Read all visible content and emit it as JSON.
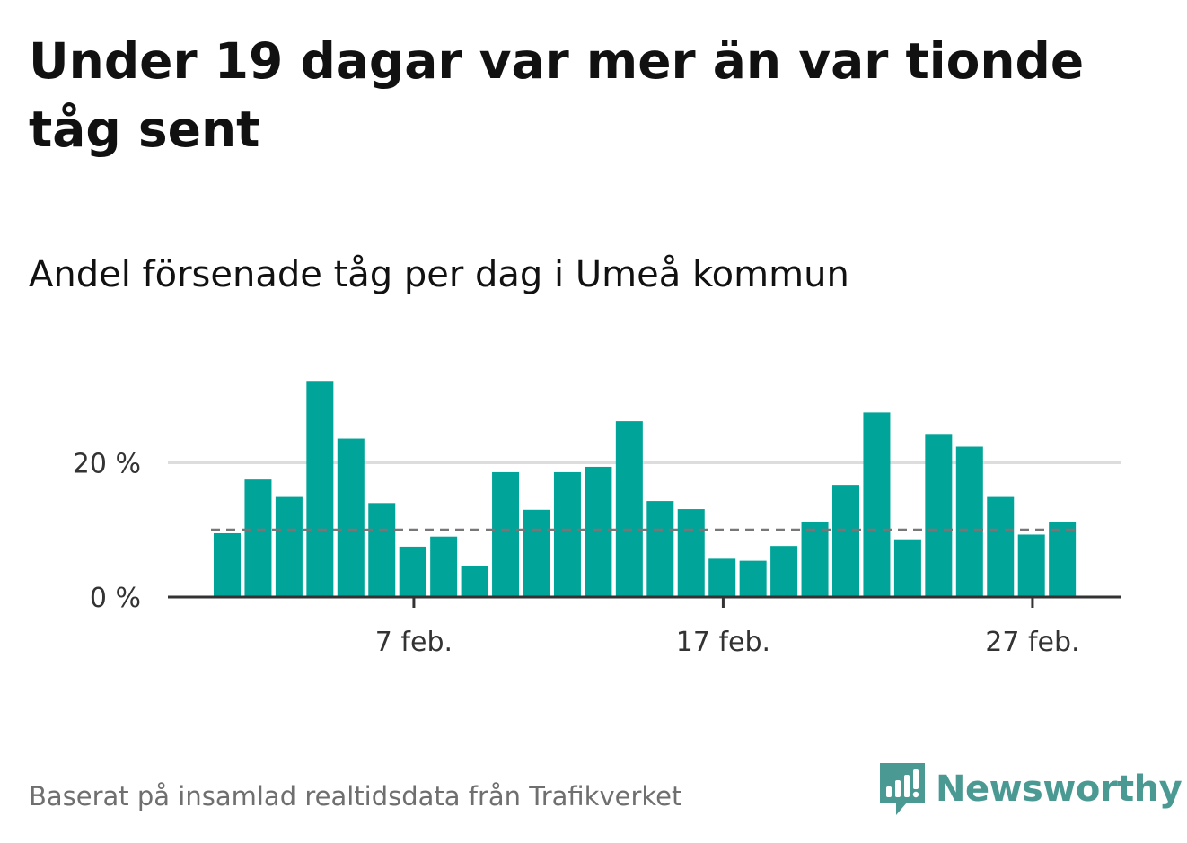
{
  "title": "Under 19 dagar var mer än var tionde tåg sent",
  "subtitle": "Andel försenade tåg per dag i Umeå kommun",
  "source": "Baserat på insamlad realtidsdata från Trafikverket",
  "logo": {
    "text": "Newsworthy",
    "icon": "bar-chart-speech-bubble-icon",
    "color": "#4a9a93"
  },
  "colors": {
    "bar": "#00a499",
    "reference": "#777777",
    "grid": "#dddddd",
    "axis": "#333333"
  },
  "chart_data": {
    "type": "bar",
    "title": "Andel försenade tåg per dag i Umeå kommun",
    "x": [
      "2/1",
      "2/2",
      "2/3",
      "2/4",
      "2/5",
      "2/6",
      "2/7",
      "2/8",
      "2/9",
      "2/10",
      "2/11",
      "2/12",
      "2/13",
      "2/14",
      "2/15",
      "2/16",
      "2/17",
      "2/18",
      "2/19",
      "2/20",
      "2/21",
      "2/22",
      "2/23",
      "2/24",
      "2/25",
      "2/26",
      "2/27",
      "2/28"
    ],
    "values": [
      9.5,
      17.5,
      14.9,
      32.2,
      23.6,
      14.0,
      7.5,
      9.0,
      4.6,
      18.6,
      13.0,
      18.6,
      19.4,
      26.2,
      14.3,
      13.1,
      5.7,
      5.4,
      7.6,
      11.2,
      16.7,
      27.5,
      8.6,
      24.3,
      22.4,
      14.9,
      9.3,
      11.2
    ],
    "reference_line": 10,
    "ylim": [
      0,
      32.5
    ],
    "yticks": [
      0,
      20
    ],
    "ytick_labels": [
      "0 %",
      "20 %"
    ],
    "xticks": [
      "2/7",
      "2/17",
      "2/27"
    ],
    "xtick_labels": [
      "7 feb.",
      "17 feb.",
      "27 feb."
    ],
    "grid": true,
    "legend": "none"
  }
}
